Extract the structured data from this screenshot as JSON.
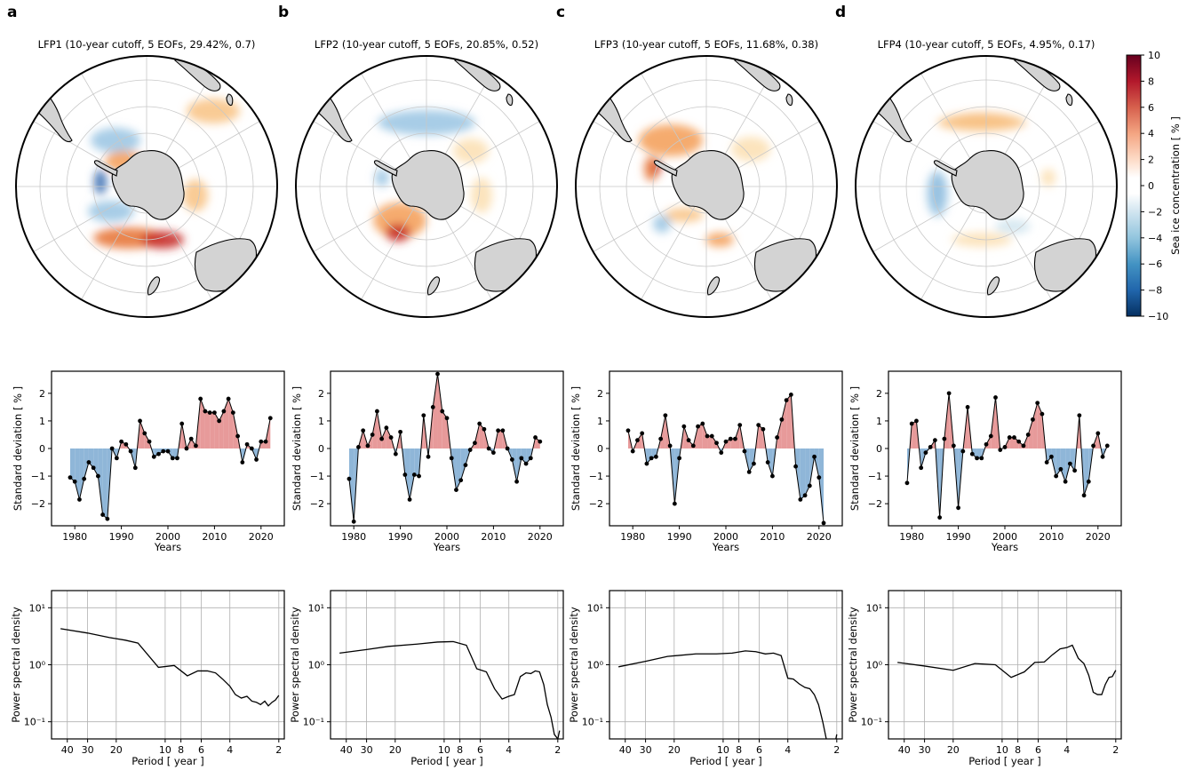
{
  "panel_letters": [
    "a",
    "b",
    "c",
    "d"
  ],
  "colorbar": {
    "label": "Sea ice concentration [ % ]",
    "ticks": [
      10,
      8,
      6,
      4,
      2,
      0,
      -2,
      -4,
      -6,
      -8,
      -10
    ],
    "range": [
      -10,
      10
    ],
    "colormap": "RdBu_r"
  },
  "colors": {
    "positive_fill": "#e79a9a",
    "negative_fill": "#8fb6d8",
    "line": "#000000",
    "land": "#d3d3d3",
    "grid": "#c8c8c8"
  },
  "chart_data": [
    {
      "type": "map",
      "panel": "a",
      "title": "LFP1 (10-year cutoff, 5 EOFs, 29.42%, 0.7)"
    },
    {
      "type": "map",
      "panel": "b",
      "title": "LFP2 (10-year cutoff, 5 EOFs, 20.85%, 0.52)"
    },
    {
      "type": "map",
      "panel": "c",
      "title": "LFP3 (10-year cutoff, 5 EOFs, 11.68%, 0.38)"
    },
    {
      "type": "map",
      "panel": "d",
      "title": "LFP4 (10-year cutoff, 5 EOFs, 4.95%, 0.17)"
    },
    {
      "type": "area",
      "panel": "a",
      "xlabel": "Years",
      "ylabel": "Standard deviation [ % ]",
      "xlim": [
        1975,
        2025
      ],
      "ylim": [
        -2.8,
        2.8
      ],
      "xticks": [
        1980,
        1990,
        2000,
        2010,
        2020
      ],
      "yticks": [
        -2,
        -1,
        0,
        1,
        2
      ],
      "x": [
        1979,
        1980,
        1981,
        1982,
        1983,
        1984,
        1985,
        1986,
        1987,
        1988,
        1989,
        1990,
        1991,
        1992,
        1993,
        1994,
        1995,
        1996,
        1997,
        1998,
        1999,
        2000,
        2001,
        2002,
        2003,
        2004,
        2005,
        2006,
        2007,
        2008,
        2009,
        2010,
        2011,
        2012,
        2013,
        2014,
        2015,
        2016,
        2017,
        2018,
        2019,
        2020,
        2021,
        2022
      ],
      "y": [
        -1.05,
        -1.2,
        -1.85,
        -1.1,
        -0.5,
        -0.7,
        -1.0,
        -2.4,
        -2.55,
        0.0,
        -0.35,
        0.25,
        0.15,
        -0.1,
        -0.7,
        1.0,
        0.55,
        0.25,
        -0.3,
        -0.2,
        -0.1,
        -0.1,
        -0.35,
        -0.35,
        0.9,
        0.0,
        0.35,
        0.1,
        1.8,
        1.35,
        1.3,
        1.3,
        1.0,
        1.35,
        1.8,
        1.3,
        0.45,
        -0.5,
        0.15,
        0.0,
        -0.4,
        0.25,
        0.25,
        1.1
      ]
    },
    {
      "type": "area",
      "panel": "b",
      "xlabel": "Years",
      "ylabel": "Standard deviation [ % ]",
      "xlim": [
        1975,
        2025
      ],
      "ylim": [
        -2.8,
        2.8
      ],
      "xticks": [
        1980,
        1990,
        2000,
        2010,
        2020
      ],
      "yticks": [
        -2,
        -1,
        0,
        1,
        2
      ],
      "x": [
        1979,
        1980,
        1981,
        1982,
        1983,
        1984,
        1985,
        1986,
        1987,
        1988,
        1989,
        1990,
        1991,
        1992,
        1993,
        1994,
        1995,
        1996,
        1997,
        1998,
        1999,
        2000,
        2001,
        2002,
        2003,
        2004,
        2005,
        2006,
        2007,
        2008,
        2009,
        2010,
        2011,
        2012,
        2013,
        2014,
        2015,
        2016,
        2017,
        2018,
        2019,
        2020,
        2021,
        2022
      ],
      "y": [
        -1.1,
        -2.65,
        0.05,
        0.65,
        0.1,
        0.5,
        1.35,
        0.35,
        0.75,
        0.4,
        -0.2,
        0.6,
        -0.95,
        -1.85,
        -0.95,
        -1.0,
        1.2,
        -0.3,
        1.5,
        2.7,
        1.35,
        1.1,
        -0.35,
        -1.5,
        -1.15,
        -0.6,
        -0.05,
        0.2,
        0.9,
        0.7,
        0.0,
        -0.15,
        0.65,
        0.65,
        0.0,
        -0.4,
        -1.2,
        -0.35,
        -0.55,
        -0.35,
        0.4,
        0.25,
        null,
        null
      ]
    },
    {
      "type": "area",
      "panel": "c",
      "xlabel": "Years",
      "ylabel": "Standard deviation [ % ]",
      "xlim": [
        1975,
        2025
      ],
      "ylim": [
        -2.8,
        2.8
      ],
      "xticks": [
        1980,
        1990,
        2000,
        2010,
        2020
      ],
      "yticks": [
        -2,
        -1,
        0,
        1,
        2
      ],
      "x": [
        1979,
        1980,
        1981,
        1982,
        1983,
        1984,
        1985,
        1986,
        1987,
        1988,
        1989,
        1990,
        1991,
        1992,
        1993,
        1994,
        1995,
        1996,
        1997,
        1998,
        1999,
        2000,
        2001,
        2002,
        2003,
        2004,
        2005,
        2006,
        2007,
        2008,
        2009,
        2010,
        2011,
        2012,
        2013,
        2014,
        2015,
        2016,
        2017,
        2018,
        2019,
        2020,
        2021,
        2022
      ],
      "y": [
        0.65,
        -0.1,
        0.3,
        0.55,
        -0.55,
        -0.35,
        -0.3,
        0.35,
        1.2,
        0.1,
        -2.0,
        -0.35,
        0.8,
        0.3,
        0.1,
        0.8,
        0.9,
        0.45,
        0.45,
        0.2,
        -0.15,
        0.25,
        0.35,
        0.35,
        0.85,
        -0.1,
        -0.85,
        -0.55,
        0.85,
        0.7,
        -0.5,
        -1.0,
        0.4,
        1.05,
        1.75,
        1.95,
        -0.65,
        -1.85,
        -1.7,
        -1.35,
        -0.3,
        -1.05,
        -2.7,
        null
      ]
    },
    {
      "type": "area",
      "panel": "d",
      "xlabel": "Years",
      "ylabel": "Standard deviation [ % ]",
      "xlim": [
        1975,
        2025
      ],
      "ylim": [
        -2.8,
        2.8
      ],
      "xticks": [
        1980,
        1990,
        2000,
        2010,
        2020
      ],
      "yticks": [
        -2,
        -1,
        0,
        1,
        2
      ],
      "x": [
        1979,
        1980,
        1981,
        1982,
        1983,
        1984,
        1985,
        1986,
        1987,
        1988,
        1989,
        1990,
        1991,
        1992,
        1993,
        1994,
        1995,
        1996,
        1997,
        1998,
        1999,
        2000,
        2001,
        2002,
        2003,
        2004,
        2005,
        2006,
        2007,
        2008,
        2009,
        2010,
        2011,
        2012,
        2013,
        2014,
        2015,
        2016,
        2017,
        2018,
        2019,
        2020,
        2021,
        2022
      ],
      "y": [
        -1.25,
        0.9,
        1.0,
        -0.7,
        -0.15,
        0.05,
        0.3,
        -2.5,
        0.35,
        2.0,
        0.1,
        -2.15,
        -0.1,
        1.5,
        -0.2,
        -0.35,
        -0.35,
        0.15,
        0.45,
        1.85,
        -0.05,
        0.05,
        0.4,
        0.4,
        0.25,
        0.1,
        0.5,
        1.05,
        1.65,
        1.25,
        -0.5,
        -0.3,
        -1.0,
        -0.75,
        -1.2,
        -0.55,
        -0.8,
        1.2,
        -1.7,
        -1.2,
        0.1,
        0.55,
        -0.3,
        0.1
      ]
    },
    {
      "type": "line",
      "panel": "a",
      "xlabel": "Period [ year ]",
      "ylabel": "Power spectral density",
      "yscale": "log",
      "xlim": [
        50,
        1.85
      ],
      "ylim": [
        0.05,
        20
      ],
      "xtick_values": [
        40,
        30,
        20,
        10,
        8,
        6,
        4,
        2
      ],
      "xtick_labels": [
        "40",
        "30",
        "20",
        "10",
        "8",
        "6",
        "4",
        "2"
      ],
      "ytick_labels": [
        "10⁻¹",
        "10⁰",
        "10¹"
      ],
      "ytick_values": [
        0.1,
        1,
        10
      ],
      "x": [
        44,
        30,
        22,
        17.6,
        14.7,
        11,
        8.8,
        7.3,
        6.3,
        5.5,
        4.9,
        4.4,
        4.0,
        3.7,
        3.4,
        3.14,
        2.93,
        2.75,
        2.59,
        2.44,
        2.32,
        2.2,
        2.1,
        2.0
      ],
      "y": [
        4.3,
        3.6,
        3.0,
        2.7,
        2.4,
        0.9,
        0.97,
        0.64,
        0.78,
        0.78,
        0.72,
        0.55,
        0.42,
        0.3,
        0.26,
        0.28,
        0.23,
        0.22,
        0.2,
        0.23,
        0.19,
        0.22,
        0.24,
        0.29
      ]
    },
    {
      "type": "line",
      "panel": "b",
      "xlabel": "Period [ year ]",
      "ylabel": "Power spectral density",
      "yscale": "log",
      "xlim": [
        50,
        1.85
      ],
      "ylim": [
        0.05,
        20
      ],
      "xtick_values": [
        40,
        30,
        20,
        10,
        8,
        6,
        4,
        2
      ],
      "xtick_labels": [
        "40",
        "30",
        "20",
        "10",
        "8",
        "6",
        "4",
        "2"
      ],
      "ytick_labels": [
        "10⁻¹",
        "10⁰",
        "10¹"
      ],
      "ytick_values": [
        0.1,
        1,
        10
      ],
      "x": [
        44,
        30,
        22,
        14.7,
        11,
        8.8,
        7.3,
        6.3,
        5.5,
        4.9,
        4.4,
        4.0,
        3.7,
        3.4,
        3.14,
        2.93,
        2.75,
        2.59,
        2.44,
        2.32,
        2.2,
        2.1,
        2.0,
        1.95
      ],
      "y": [
        1.6,
        1.85,
        2.1,
        2.3,
        2.5,
        2.55,
        2.2,
        0.85,
        0.75,
        0.38,
        0.25,
        0.28,
        0.3,
        0.62,
        0.72,
        0.7,
        0.78,
        0.75,
        0.45,
        0.2,
        0.12,
        0.06,
        0.05,
        0.07
      ]
    },
    {
      "type": "line",
      "panel": "c",
      "xlabel": "Period [ year ]",
      "ylabel": "Power spectral density",
      "yscale": "log",
      "xlim": [
        50,
        1.85
      ],
      "ylim": [
        0.05,
        20
      ],
      "xtick_values": [
        40,
        30,
        20,
        10,
        8,
        6,
        4,
        2
      ],
      "xtick_labels": [
        "40",
        "30",
        "20",
        "10",
        "8",
        "6",
        "4",
        "2"
      ],
      "ytick_labels": [
        "10⁻¹",
        "10⁰",
        "10¹"
      ],
      "ytick_values": [
        0.1,
        1,
        10
      ],
      "x": [
        44,
        30,
        22,
        14.7,
        11,
        8.8,
        7.3,
        6.3,
        5.5,
        4.9,
        4.4,
        4.0,
        3.7,
        3.4,
        3.14,
        2.93,
        2.75,
        2.59,
        2.44,
        2.32,
        2.2,
        2.1,
        2.0
      ],
      "y": [
        0.92,
        1.15,
        1.4,
        1.55,
        1.55,
        1.6,
        1.75,
        1.7,
        1.55,
        1.6,
        1.45,
        0.58,
        0.56,
        0.46,
        0.4,
        0.38,
        0.3,
        0.2,
        0.1,
        0.05,
        0.03,
        0.03,
        0.06
      ]
    },
    {
      "type": "line",
      "panel": "d",
      "xlabel": "Period [ year ]",
      "ylabel": "Power spectral density",
      "yscale": "log",
      "xlim": [
        50,
        1.85
      ],
      "ylim": [
        0.05,
        20
      ],
      "xtick_values": [
        40,
        30,
        20,
        10,
        8,
        6,
        4,
        2
      ],
      "xtick_labels": [
        "40",
        "30",
        "20",
        "10",
        "8",
        "6",
        "4",
        "2"
      ],
      "ytick_labels": [
        "10⁻¹",
        "10⁰",
        "10¹"
      ],
      "ytick_values": [
        0.1,
        1,
        10
      ],
      "x": [
        44,
        30,
        20,
        14.7,
        11,
        8.8,
        7.3,
        6.3,
        5.5,
        4.9,
        4.4,
        4.0,
        3.7,
        3.4,
        3.14,
        2.93,
        2.75,
        2.59,
        2.44,
        2.32,
        2.2,
        2.1,
        2.0
      ],
      "y": [
        1.1,
        0.95,
        0.8,
        1.05,
        1.0,
        0.6,
        0.75,
        1.1,
        1.12,
        1.5,
        1.9,
        2.0,
        2.2,
        1.3,
        1.05,
        0.65,
        0.33,
        0.3,
        0.3,
        0.45,
        0.6,
        0.62,
        0.8
      ]
    }
  ]
}
